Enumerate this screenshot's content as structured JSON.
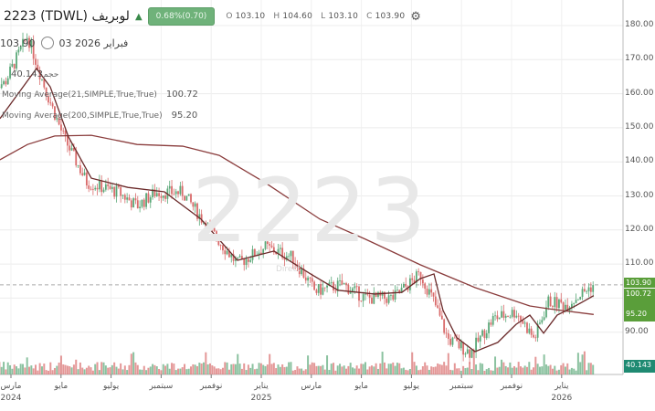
{
  "header": {
    "symbol": "2223 (TDWL) لوبريف",
    "change": "0.68%(0.70)",
    "o_label": "O",
    "o": "103.10",
    "h_label": "H",
    "h": "104.60",
    "l_label": "L",
    "l": "103.10",
    "c_label": "C",
    "c": "103.90"
  },
  "cursor": {
    "price": "103.90",
    "date": "03 2026 فبراير"
  },
  "volume_legend": {
    "label": "حجم",
    "value": "40.143"
  },
  "legends": [
    {
      "label": "Moving Average(21,SIMPLE,True,True)",
      "value": "100.72"
    },
    {
      "label": "Moving Average(200,SIMPLE,True,True)",
      "value": "95.20"
    }
  ],
  "watermark": "2223",
  "watermark_sub": "Direct",
  "badges": {
    "last": "103.90",
    "ma21": "100.72",
    "ma200": "95.20",
    "volume": "40.143"
  },
  "colors": {
    "up": "#5aa878",
    "down": "#d96b6b",
    "ma_short": "#6b2a2a",
    "ma_long": "#8a3c3c",
    "badge_green": "#5a9e3a",
    "badge_teal": "#1f8a72"
  },
  "chart_data": {
    "type": "candlestick",
    "y_ticks": [
      "180.00",
      "170.00",
      "160.00",
      "150.00",
      "140.00",
      "130.00",
      "120.00",
      "110.00",
      "90.00"
    ],
    "ylim": [
      80,
      182
    ],
    "x_labels": [
      {
        "m": 1,
        "label": "مارس",
        "year": "2024"
      },
      {
        "m": 3,
        "label": "مايو"
      },
      {
        "m": 5,
        "label": "يوليو"
      },
      {
        "m": 7,
        "label": "سبتمبر"
      },
      {
        "m": 9,
        "label": "نوفمبر"
      },
      {
        "m": 11,
        "label": "يناير",
        "year": "2025"
      },
      {
        "m": 13,
        "label": "مارس"
      },
      {
        "m": 15,
        "label": "مايو"
      },
      {
        "m": 17,
        "label": "يوليو"
      },
      {
        "m": 19,
        "label": "سبتمبر"
      },
      {
        "m": 21,
        "label": "نوفمبر"
      },
      {
        "m": 23,
        "label": "يناير",
        "year": "2026"
      }
    ],
    "price_path": [
      [
        0.74,
        163
      ],
      [
        1.66,
        177
      ],
      [
        2.39,
        161
      ],
      [
        3.12,
        147
      ],
      [
        4.03,
        134
      ],
      [
        5.31,
        131
      ],
      [
        6.04,
        127
      ],
      [
        6.77,
        131
      ],
      [
        7.86,
        131
      ],
      [
        8.96,
        120
      ],
      [
        10.05,
        110
      ],
      [
        11.15,
        115
      ],
      [
        12.24,
        112
      ],
      [
        13.15,
        102
      ],
      [
        14.25,
        104
      ],
      [
        15.16,
        100
      ],
      [
        16.26,
        100
      ],
      [
        17.35,
        107
      ],
      [
        17.9,
        99
      ],
      [
        18.45,
        88
      ],
      [
        19.36,
        84
      ],
      [
        20.27,
        94
      ],
      [
        21.18,
        96
      ],
      [
        21.91,
        88
      ],
      [
        22.46,
        99
      ],
      [
        23.19,
        98
      ],
      [
        23.92,
        102
      ],
      [
        24.28,
        103.9
      ]
    ],
    "ma21": [
      [
        0.56,
        152.7
      ],
      [
        2.02,
        167.4
      ],
      [
        2.57,
        162.0
      ],
      [
        3.3,
        147.3
      ],
      [
        4.21,
        135.2
      ],
      [
        5.67,
        132.5
      ],
      [
        7.13,
        131.2
      ],
      [
        8.59,
        123.2
      ],
      [
        10.05,
        111.1
      ],
      [
        11.51,
        113.8
      ],
      [
        12.97,
        107.1
      ],
      [
        14.07,
        102.3
      ],
      [
        15.53,
        101.2
      ],
      [
        16.62,
        101.7
      ],
      [
        17.35,
        105.7
      ],
      [
        17.9,
        107.1
      ],
      [
        18.26,
        96.4
      ],
      [
        18.81,
        88.4
      ],
      [
        19.54,
        84.3
      ],
      [
        20.45,
        87.0
      ],
      [
        21.18,
        92.3
      ],
      [
        21.73,
        95.0
      ],
      [
        22.28,
        89.7
      ],
      [
        22.82,
        95.0
      ],
      [
        23.55,
        97.7
      ],
      [
        24.28,
        100.72
      ]
    ],
    "ma200": [
      [
        0.56,
        140.6
      ],
      [
        1.66,
        145.1
      ],
      [
        2.75,
        147.6
      ],
      [
        4.21,
        147.8
      ],
      [
        6.04,
        145.1
      ],
      [
        7.86,
        144.6
      ],
      [
        9.32,
        141.9
      ],
      [
        11.15,
        133.9
      ],
      [
        13.34,
        123.2
      ],
      [
        15.16,
        117.3
      ],
      [
        17.35,
        109.8
      ],
      [
        19.54,
        103.1
      ],
      [
        21.73,
        97.7
      ],
      [
        22.46,
        96.9
      ],
      [
        24.28,
        95.2
      ]
    ],
    "last_price": 103.9
  }
}
